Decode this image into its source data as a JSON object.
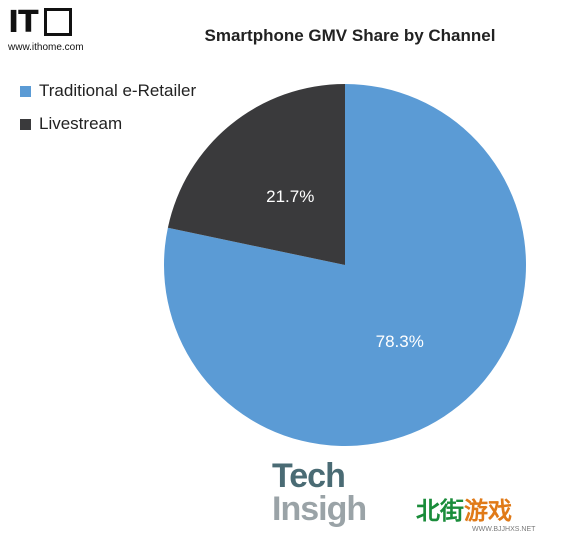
{
  "header": {
    "logo_text": "IT",
    "logo_url": "www.ithome.com"
  },
  "chart_data": {
    "type": "pie",
    "title": "Smartphone GMV Share by Channel",
    "legend_position": "top-left",
    "slices": [
      {
        "label": "Traditional e-Retailer",
        "value": 78.3,
        "value_label": "78.3%",
        "color": "#5b9bd5"
      },
      {
        "label": "Livestream",
        "value": 21.7,
        "value_label": "21.7%",
        "color": "#3a3a3c"
      }
    ]
  },
  "watermarks": {
    "tech_line1": "Tech",
    "tech_line2": "Insigh",
    "game_cn_green": "北街",
    "game_cn_orange": "游戏",
    "game_url": "WWW.BJJHXS.NET"
  }
}
